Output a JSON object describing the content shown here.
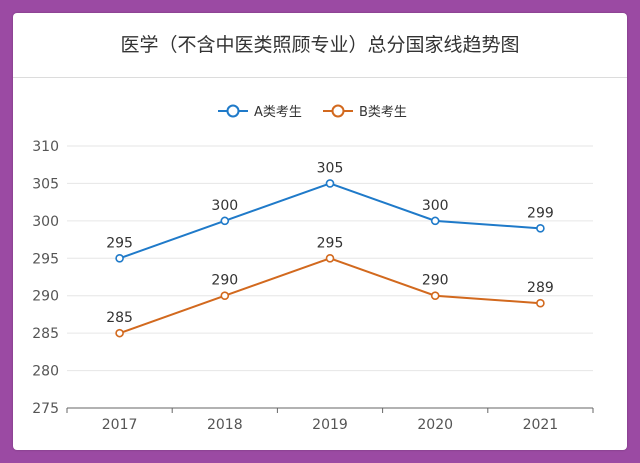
{
  "chart_data": {
    "type": "line",
    "title": "医学（不含中医类照顾专业）总分国家线趋势图",
    "categories": [
      "2017",
      "2018",
      "2019",
      "2020",
      "2021"
    ],
    "series": [
      {
        "name": "A类考生",
        "values": [
          295,
          300,
          305,
          300,
          299
        ],
        "color": "#1f7ac9"
      },
      {
        "name": "B类考生",
        "values": [
          285,
          290,
          295,
          290,
          289
        ],
        "color": "#d2691e"
      }
    ],
    "ylim": [
      275,
      310
    ],
    "yticks": [
      275,
      280,
      285,
      290,
      295,
      300,
      305,
      310
    ],
    "grid": true,
    "legend": "top-center"
  }
}
